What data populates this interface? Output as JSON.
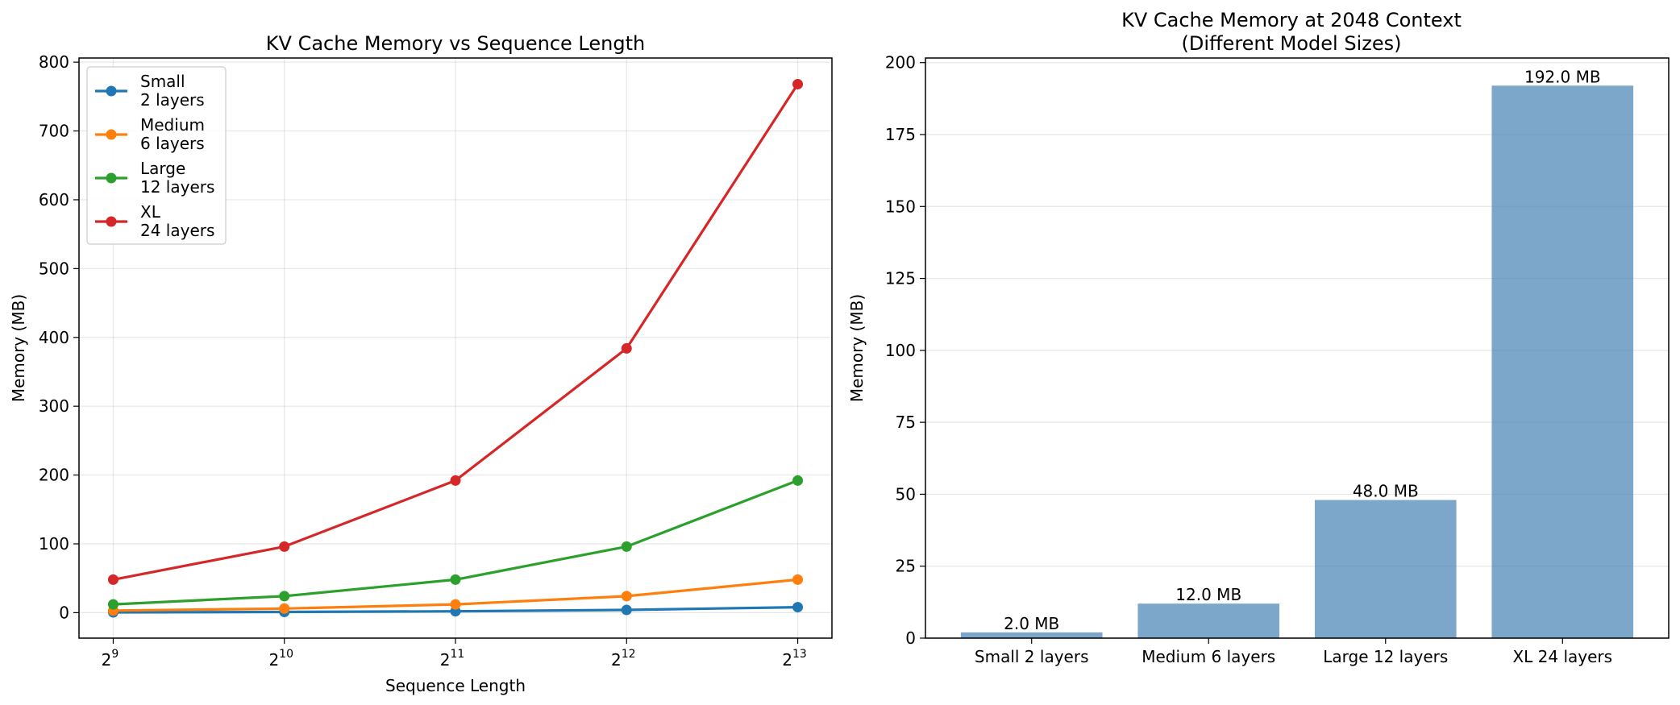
{
  "chart_data": [
    {
      "type": "line",
      "title": "KV Cache Memory vs Sequence Length",
      "xlabel": "Sequence Length",
      "ylabel": "Memory (MB)",
      "x": [
        512,
        1024,
        2048,
        4096,
        8192
      ],
      "xscale": "log2",
      "x_ticks": [
        {
          "base": "2",
          "exp": "9"
        },
        {
          "base": "2",
          "exp": "10"
        },
        {
          "base": "2",
          "exp": "11"
        },
        {
          "base": "2",
          "exp": "12"
        },
        {
          "base": "2",
          "exp": "13"
        }
      ],
      "ylim": [
        -37,
        806
      ],
      "y_ticks": [
        "0",
        "100",
        "200",
        "300",
        "400",
        "500",
        "600",
        "700",
        "800"
      ],
      "grid": true,
      "legend_position": "upper-left",
      "series": [
        {
          "name": [
            "Small",
            "2 layers"
          ],
          "color": "#1f77b4",
          "values": [
            0.5,
            1,
            2,
            4,
            8
          ]
        },
        {
          "name": [
            "Medium",
            "6 layers"
          ],
          "color": "#ff7f0e",
          "values": [
            3,
            6,
            12,
            24,
            48
          ]
        },
        {
          "name": [
            "Large",
            "12 layers"
          ],
          "color": "#2ca02c",
          "values": [
            12,
            24,
            48,
            96,
            192
          ]
        },
        {
          "name": [
            "XL",
            "24 layers"
          ],
          "color": "#d62728",
          "values": [
            48,
            96,
            192,
            384,
            768
          ]
        }
      ]
    },
    {
      "type": "bar",
      "title": [
        "KV Cache Memory at 2048 Context",
        "(Different Model Sizes)"
      ],
      "xlabel": "",
      "ylabel": "Memory (MB)",
      "categories": [
        "Small 2 layers",
        "Medium 6 layers",
        "Large 12 layers",
        "XL 24 layers"
      ],
      "values": [
        2.0,
        12.0,
        48.0,
        192.0
      ],
      "data_labels": [
        "2.0 MB",
        "12.0 MB",
        "48.0 MB",
        "192.0 MB"
      ],
      "ylim": [
        0,
        201.6
      ],
      "y_ticks": [
        "0",
        "25",
        "50",
        "75",
        "100",
        "125",
        "150",
        "175",
        "200"
      ],
      "grid": true,
      "bar_color": "#4682b4",
      "bar_opacity": 0.7
    }
  ]
}
